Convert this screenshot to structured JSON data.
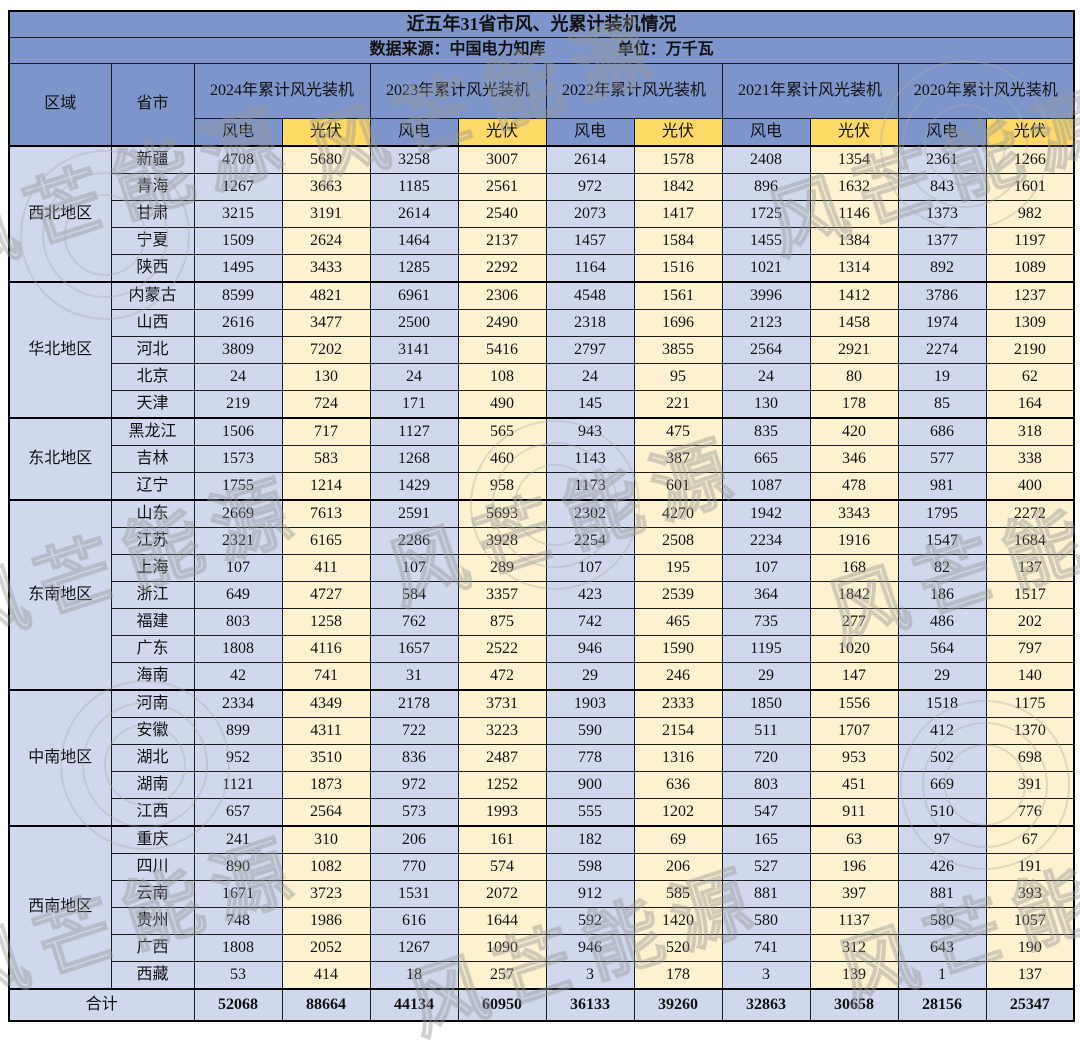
{
  "chart_data": {
    "type": "table",
    "title": "近五年31省市风、光累计装机情况",
    "source_note": "数据来源：中国电力知库",
    "unit_note": "单位：万千瓦",
    "headers": {
      "region": "区域",
      "province": "省市"
    },
    "column_groups": [
      "2024年累计风光装机",
      "2023年累计风光装机",
      "2022年累计风光装机",
      "2021年累计风光装机",
      "2020年累计风光装机"
    ],
    "sub_columns": {
      "wind": "风电",
      "solar": "光伏"
    },
    "regions": [
      {
        "name": "西北地区",
        "rows": [
          {
            "province": "新疆",
            "values": [
              4708,
              5680,
              3258,
              3007,
              2614,
              1578,
              2408,
              1354,
              2361,
              1266
            ]
          },
          {
            "province": "青海",
            "values": [
              1267,
              3663,
              1185,
              2561,
              972,
              1842,
              896,
              1632,
              843,
              1601
            ]
          },
          {
            "province": "甘肃",
            "values": [
              3215,
              3191,
              2614,
              2540,
              2073,
              1417,
              1725,
              1146,
              1373,
              982
            ]
          },
          {
            "province": "宁夏",
            "values": [
              1509,
              2624,
              1464,
              2137,
              1457,
              1584,
              1455,
              1384,
              1377,
              1197
            ]
          },
          {
            "province": "陕西",
            "values": [
              1495,
              3433,
              1285,
              2292,
              1164,
              1516,
              1021,
              1314,
              892,
              1089
            ]
          }
        ]
      },
      {
        "name": "华北地区",
        "rows": [
          {
            "province": "内蒙古",
            "values": [
              8599,
              4821,
              6961,
              2306,
              4548,
              1561,
              3996,
              1412,
              3786,
              1237
            ]
          },
          {
            "province": "山西",
            "values": [
              2616,
              3477,
              2500,
              2490,
              2318,
              1696,
              2123,
              1458,
              1974,
              1309
            ]
          },
          {
            "province": "河北",
            "values": [
              3809,
              7202,
              3141,
              5416,
              2797,
              3855,
              2564,
              2921,
              2274,
              2190
            ]
          },
          {
            "province": "北京",
            "values": [
              24,
              130,
              24,
              108,
              24,
              95,
              24,
              80,
              19,
              62
            ]
          },
          {
            "province": "天津",
            "values": [
              219,
              724,
              171,
              490,
              145,
              221,
              130,
              178,
              85,
              164
            ]
          }
        ]
      },
      {
        "name": "东北地区",
        "rows": [
          {
            "province": "黑龙江",
            "values": [
              1506,
              717,
              1127,
              565,
              943,
              475,
              835,
              420,
              686,
              318
            ]
          },
          {
            "province": "吉林",
            "values": [
              1573,
              583,
              1268,
              460,
              1143,
              387,
              665,
              346,
              577,
              338
            ]
          },
          {
            "province": "辽宁",
            "values": [
              1755,
              1214,
              1429,
              958,
              1173,
              601,
              1087,
              478,
              981,
              400
            ]
          }
        ]
      },
      {
        "name": "东南地区",
        "rows": [
          {
            "province": "山东",
            "values": [
              2669,
              7613,
              2591,
              5693,
              2302,
              4270,
              1942,
              3343,
              1795,
              2272
            ]
          },
          {
            "province": "江苏",
            "values": [
              2321,
              6165,
              2286,
              3928,
              2254,
              2508,
              2234,
              1916,
              1547,
              1684
            ]
          },
          {
            "province": "上海",
            "values": [
              107,
              411,
              107,
              289,
              107,
              195,
              107,
              168,
              82,
              137
            ]
          },
          {
            "province": "浙江",
            "values": [
              649,
              4727,
              584,
              3357,
              423,
              2539,
              364,
              1842,
              186,
              1517
            ]
          },
          {
            "province": "福建",
            "values": [
              803,
              1258,
              762,
              875,
              742,
              465,
              735,
              277,
              486,
              202
            ]
          },
          {
            "province": "广东",
            "values": [
              1808,
              4116,
              1657,
              2522,
              946,
              1590,
              1195,
              1020,
              564,
              797
            ]
          },
          {
            "province": "海南",
            "values": [
              42,
              741,
              31,
              472,
              29,
              246,
              29,
              147,
              29,
              140
            ]
          }
        ]
      },
      {
        "name": "中南地区",
        "rows": [
          {
            "province": "河南",
            "values": [
              2334,
              4349,
              2178,
              3731,
              1903,
              2333,
              1850,
              1556,
              1518,
              1175
            ]
          },
          {
            "province": "安徽",
            "values": [
              899,
              4311,
              722,
              3223,
              590,
              2154,
              511,
              1707,
              412,
              1370
            ]
          },
          {
            "province": "湖北",
            "values": [
              952,
              3510,
              836,
              2487,
              778,
              1316,
              720,
              953,
              502,
              698
            ]
          },
          {
            "province": "湖南",
            "values": [
              1121,
              1873,
              972,
              1252,
              900,
              636,
              803,
              451,
              669,
              391
            ]
          },
          {
            "province": "江西",
            "values": [
              657,
              2564,
              573,
              1993,
              555,
              1202,
              547,
              911,
              510,
              776
            ]
          }
        ]
      },
      {
        "name": "西南地区",
        "rows": [
          {
            "province": "重庆",
            "values": [
              241,
              310,
              206,
              161,
              182,
              69,
              165,
              63,
              97,
              67
            ]
          },
          {
            "province": "四川",
            "values": [
              890,
              1082,
              770,
              574,
              598,
              206,
              527,
              196,
              426,
              191
            ]
          },
          {
            "province": "云南",
            "values": [
              1671,
              3723,
              1531,
              2072,
              912,
              585,
              881,
              397,
              881,
              393
            ]
          },
          {
            "province": "贵州",
            "values": [
              748,
              1986,
              616,
              1644,
              592,
              1420,
              580,
              1137,
              580,
              1057
            ]
          },
          {
            "province": "广西",
            "values": [
              1808,
              2052,
              1267,
              1090,
              946,
              520,
              741,
              312,
              643,
              190
            ]
          },
          {
            "province": "西藏",
            "values": [
              53,
              414,
              18,
              257,
              3,
              178,
              3,
              139,
              1,
              137
            ]
          }
        ]
      },
      {
        "name": "合计",
        "rows": []
      }
    ],
    "total": {
      "label": "合计",
      "values": [
        52068,
        88664,
        44134,
        60950,
        36133,
        39260,
        32863,
        30658,
        28156,
        25347
      ]
    }
  },
  "colors": {
    "header_blue": "#7E95CB",
    "light_blue": "#CFD8EC",
    "header_yellow": "#FFD966",
    "light_yellow": "#FCF2CF",
    "border": "#1b1b1b",
    "watermark_gray": "#a9a9a9"
  },
  "watermark": {
    "text": "风芒能源"
  }
}
